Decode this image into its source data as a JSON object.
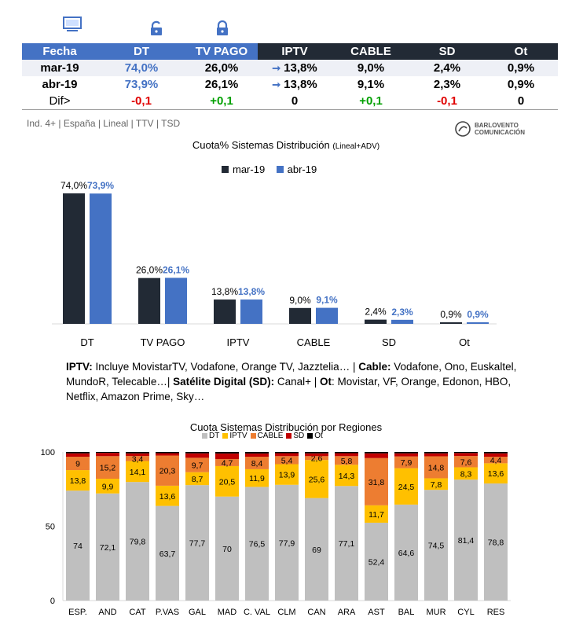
{
  "table": {
    "columns": [
      "Fecha",
      "DT",
      "TV PAGO",
      "IPTV",
      "CABLE",
      "SD",
      "Ot"
    ],
    "rows": [
      {
        "fecha": "mar-19",
        "dt": "74,0%",
        "tvpago": "26,0%",
        "iptv": "13,8%",
        "cable": "9,0%",
        "sd": "2,4%",
        "ot": "0,9%"
      },
      {
        "fecha": "abr-19",
        "dt": "73,9%",
        "tvpago": "26,1%",
        "iptv": "13,8%",
        "cable": "9,1%",
        "sd": "2,3%",
        "ot": "0,9%"
      }
    ],
    "dif": {
      "fecha": "Dif>",
      "dt": "-0,1",
      "tvpago": "+0,1",
      "iptv": "0",
      "cable": "+0,1",
      "sd": "-0,1",
      "ot": "0"
    }
  },
  "subtitle": "Ind. 4+ | España | Lineal | TTV | TSD",
  "logo": {
    "line1": "BARLOVENTO",
    "line2": "COMUNICACIÓN"
  },
  "colors": {
    "dark": "#222a35",
    "blue": "#4472c4",
    "dt": "#bfbfbf",
    "iptv": "#ffc000",
    "cable": "#ed7d31",
    "sd": "#c00000",
    "ot": "#000000"
  },
  "description": {
    "iptv_label": "IPTV:",
    "iptv_text": " Incluye MovistarTV, Vodafone, Orange TV, Jazztelia… | ",
    "cable_label": "Cable:",
    "cable_text": " Vodafone, Ono, Euskaltel, MundoR, Telecable…| ",
    "sd_label": "Satélite Digital (SD):",
    "sd_text": " Canal+ | ",
    "ot_label": "Ot",
    "ot_text": ": Movistar, VF, Orange, Edonon, HBO, Netflix, Amazon Prime, Sky…"
  },
  "chart_data": [
    {
      "type": "bar",
      "title": "Cuota% Sistemas Distribución",
      "title_suffix": "(Lineal+ADV)",
      "categories": [
        "DT",
        "TV PAGO",
        "IPTV",
        "CABLE",
        "SD",
        "Ot"
      ],
      "series": [
        {
          "name": "mar-19",
          "values": [
            74.0,
            26.0,
            13.8,
            9.0,
            2.4,
            0.9
          ],
          "labels": [
            "74,0%",
            "26,0%",
            "13,8%",
            "9,0%",
            "2,4%",
            "0,9%"
          ]
        },
        {
          "name": "abr-19",
          "values": [
            73.9,
            26.1,
            13.8,
            9.1,
            2.3,
            0.9
          ],
          "labels": [
            "73,9%",
            "26,1%",
            "13,8%",
            "9,1%",
            "2,3%",
            "0,9%"
          ]
        }
      ],
      "legend": "top"
    },
    {
      "type": "bar",
      "stacked": true,
      "title": "Cuota Sistemas Distribución por  Regiones",
      "categories": [
        "ESP.",
        "AND",
        "CAT",
        "P.VAS",
        "GAL",
        "MAD",
        "C. VAL",
        "CLM",
        "CAN",
        "ARA",
        "AST",
        "BAL",
        "MUR",
        "CYL",
        "RES"
      ],
      "series": [
        {
          "name": "DT",
          "values": [
            74,
            72.1,
            79.8,
            63.7,
            77.7,
            70,
            76.5,
            77.9,
            69,
            77.1,
            52.4,
            64.6,
            74.5,
            81.4,
            78.8
          ],
          "labels": [
            "74",
            "72,1",
            "79,8",
            "63,7",
            "77,7",
            "70",
            "76,5",
            "77,9",
            "69",
            "77,1",
            "52,4",
            "64,6",
            "74,5",
            "81,4",
            "78,8"
          ]
        },
        {
          "name": "IPTV",
          "values": [
            13.8,
            9.9,
            14.1,
            13.6,
            8.7,
            20.5,
            11.9,
            13.9,
            25.6,
            14.3,
            11.7,
            24.5,
            7.8,
            8.3,
            13.6
          ],
          "labels": [
            "13,8",
            "9,9",
            "14,1",
            "13,6",
            "8,7",
            "20,5",
            "11,9",
            "13,9",
            "25,6",
            "14,3",
            "11,7",
            "24,5",
            "7,8",
            "8,3",
            "13,6"
          ]
        },
        {
          "name": "CABLE",
          "values": [
            9,
            15.2,
            3.4,
            20.3,
            9.7,
            4.7,
            8.4,
            5.4,
            2.6,
            5.8,
            31.8,
            7.9,
            14.8,
            7.6,
            4.4
          ],
          "labels": [
            "9",
            "15,2",
            "3,4",
            "20,3",
            "9,7",
            "4,7",
            "8,4",
            "5,4",
            "2,6",
            "5,8",
            "31,8",
            "7,9",
            "14,8",
            "7,6",
            "4,4"
          ]
        },
        {
          "name": "SD",
          "values": [
            2.3,
            2.2,
            1.8,
            1.6,
            3.0,
            3.8,
            2.2,
            2.0,
            1.9,
            2.0,
            3.2,
            2.1,
            2.0,
            2.0,
            2.3
          ]
        },
        {
          "name": "Ot",
          "values": [
            0.9,
            0.6,
            0.9,
            0.8,
            0.9,
            1.0,
            1.0,
            0.8,
            0.9,
            0.8,
            0.9,
            0.9,
            0.9,
            0.7,
            0.9
          ]
        }
      ],
      "yticks": [
        "0",
        "50",
        "100"
      ],
      "ylim": [
        0,
        100
      ],
      "legend": "top"
    }
  ]
}
